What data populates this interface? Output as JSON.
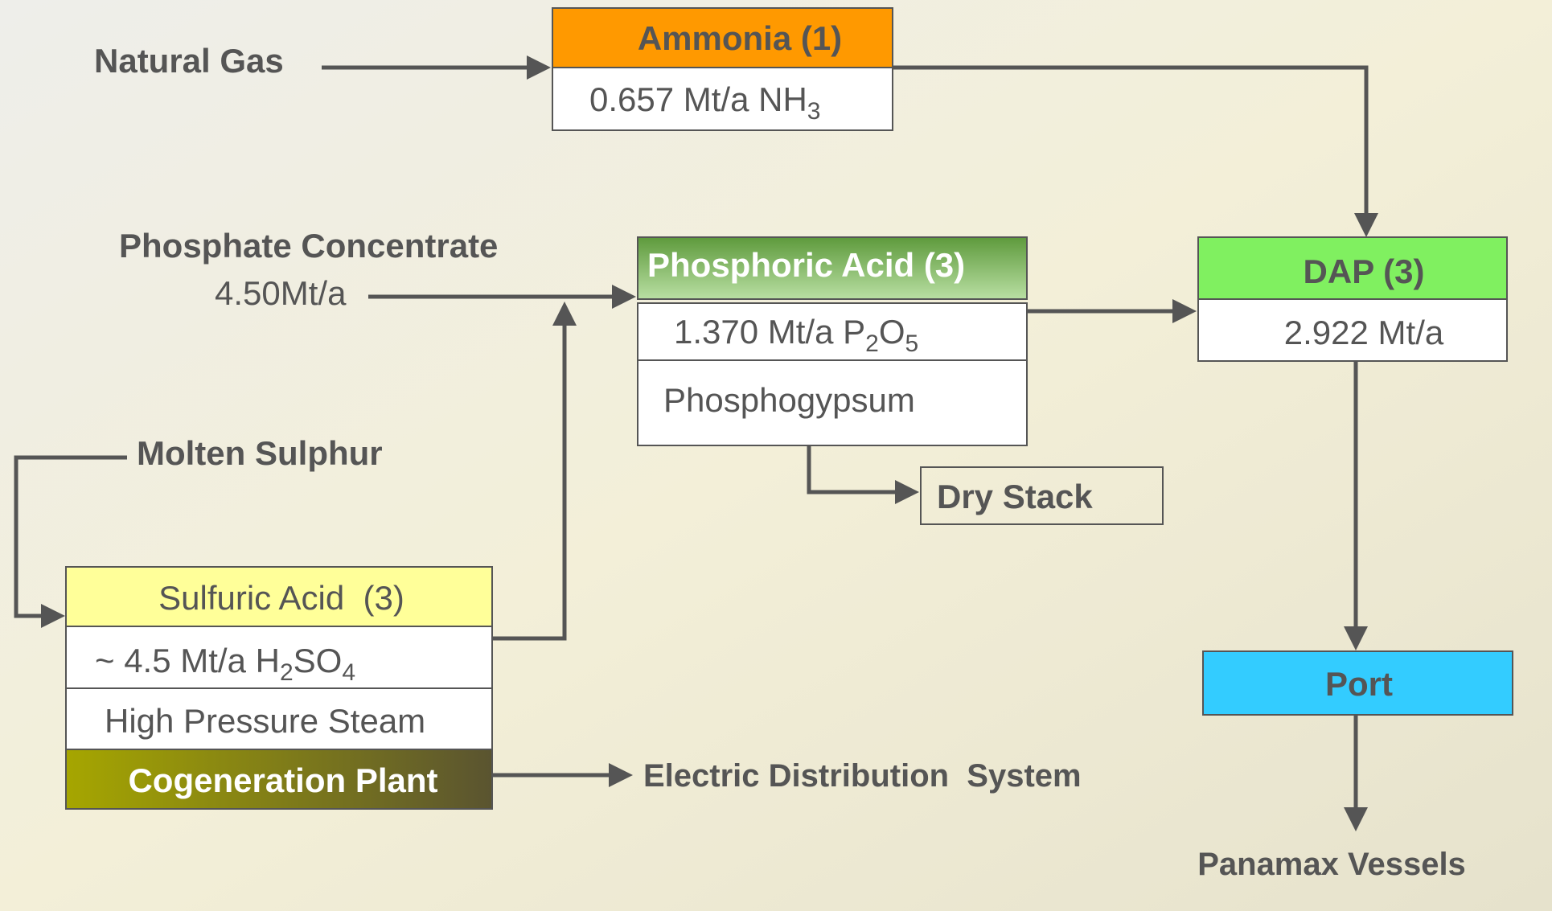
{
  "inputs": {
    "natural_gas": "Natural Gas",
    "phosphate": "Phosphate Concentrate",
    "phosphate_rate": "4.50Mt/a",
    "sulphur": "Molten Sulphur"
  },
  "ammonia": {
    "title": "Ammonia (1)",
    "output": [
      "0.657 Mt/a NH",
      "3"
    ]
  },
  "phosphoric_acid": {
    "title": "Phosphoric Acid (3)",
    "output": [
      "1.370 Mt/a P",
      "2",
      "O",
      "5"
    ],
    "byproduct": "Phosphogypsum"
  },
  "dap": {
    "title": "DAP (3)",
    "output": "2.922 Mt/a"
  },
  "sulfuric_acid": {
    "title": "Sulfuric Acid  (3)",
    "output": [
      "~ 4.5 Mt/a H",
      "2",
      "SO",
      "4"
    ],
    "byproduct": "High Pressure Steam",
    "plant": "Cogeneration Plant"
  },
  "dry_stack": "Dry Stack",
  "port": "Port",
  "electric": "Electric Distribution  System",
  "vessels": "Panamax Vessels"
}
